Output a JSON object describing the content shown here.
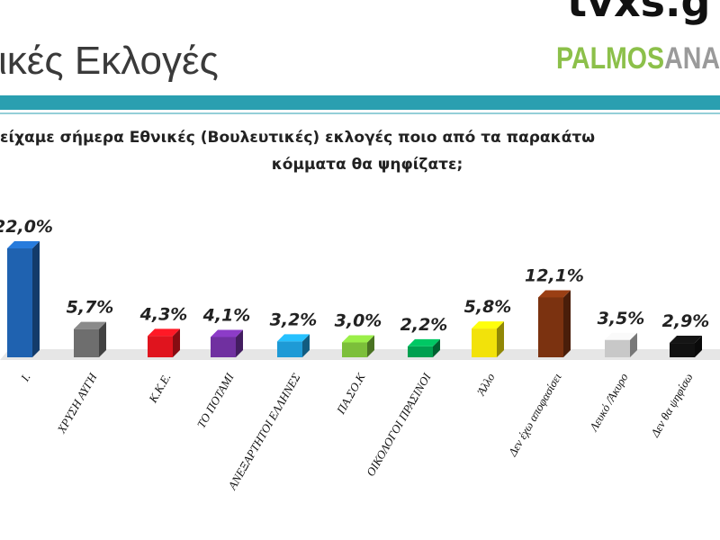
{
  "title": "ικές Εκλογές",
  "logo": {
    "top": "tvxs.g",
    "brand_a": "PALMOS",
    "brand_b": "ANA"
  },
  "chart_data": {
    "type": "bar3d",
    "title_lines": [
      "είχαμε σήμερα Εθνικές (Βουλευτικές) εκλογές ποιο από τα παρακάτω",
      "κόμματα θα ψηφίζατε;"
    ],
    "categories": [
      "Ι.",
      "ΧΡΥΣΗ ΑΥΓΗ",
      "Κ.Κ.Ε.",
      "ΤΟ ΠΟΤΑΜΙ",
      "ΑΝΕΞΑΡΤΗΤΟΙ ΕΛΛΗΝΕΣ",
      "ΠΑ.ΣΟ.Κ",
      "ΟΙΚΟΛΟΓΟΙ ΠΡΑΣΙΝΟΙ",
      "Άλλο",
      "Δεν έχω αποφασίσει",
      "Λευκό /Άκυρο",
      "Δεν θα ψηφίσω"
    ],
    "values": [
      22.0,
      5.7,
      4.3,
      4.1,
      3.2,
      3.0,
      2.2,
      5.8,
      12.1,
      3.5,
      2.9
    ],
    "value_labels": [
      "22,0%",
      "5,7%",
      "4,3%",
      "4,1%",
      "3,2%",
      "3,0%",
      "2,2%",
      "5,8%",
      "12,1%",
      "3,5%",
      "2,9%"
    ],
    "colors": [
      "#1f62b0",
      "#6e6e6e",
      "#e0141e",
      "#7030a0",
      "#1e9ad6",
      "#7cbf3a",
      "#00a050",
      "#f2e20a",
      "#7b3210",
      "#c8c8c8",
      "#111111"
    ]
  }
}
